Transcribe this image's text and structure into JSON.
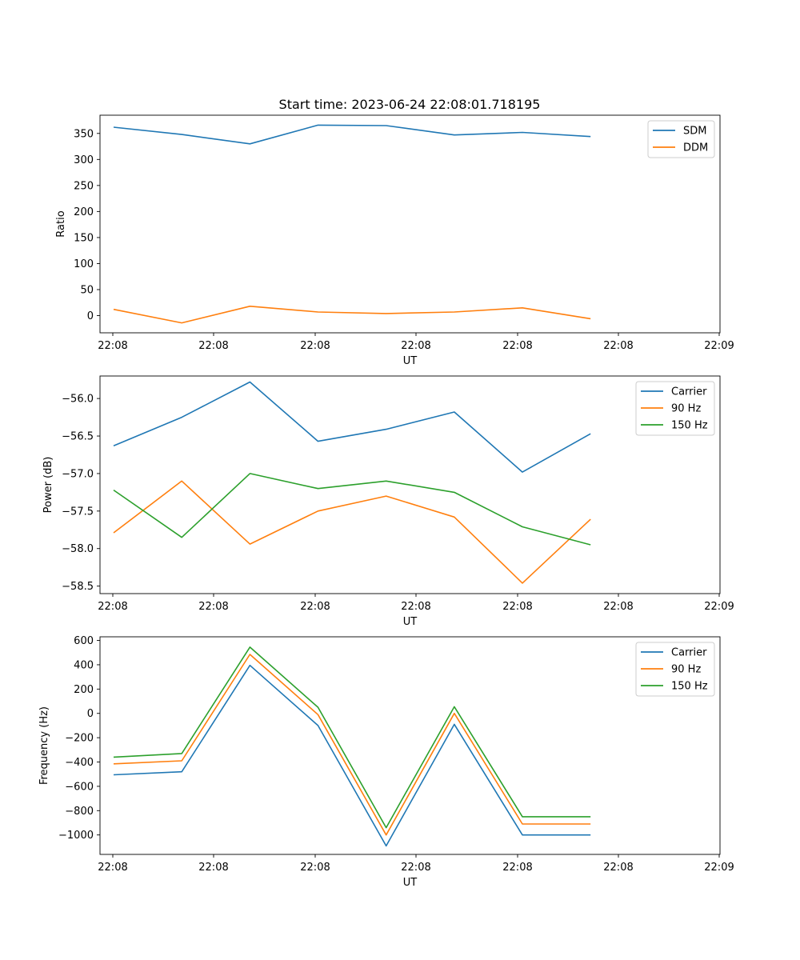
{
  "figure": {
    "title": "Start time: 2023-06-24 22:08:01.718195"
  },
  "chart_data": [
    {
      "type": "line",
      "xlabel": "UT",
      "ylabel": "Ratio",
      "x_tick_labels": [
        "22:08",
        "22:08",
        "22:08",
        "22:08",
        "22:08",
        "22:08",
        "22:09"
      ],
      "x": [
        1,
        2,
        3,
        4,
        5,
        6,
        7,
        8
      ],
      "xlim": [
        0.8,
        9.9
      ],
      "ylim": [
        -33,
        385
      ],
      "yticks": [
        0,
        50,
        100,
        150,
        200,
        250,
        300,
        350
      ],
      "ytick_labels": [
        "0",
        "50",
        "100",
        "150",
        "200",
        "250",
        "300",
        "350"
      ],
      "legend_position": "top-right",
      "series": [
        {
          "name": "SDM",
          "color": "#1f77b4",
          "values": [
            362,
            348,
            330,
            366,
            365,
            347,
            352,
            344
          ]
        },
        {
          "name": "DDM",
          "color": "#ff7f0e",
          "values": [
            12,
            -14,
            18,
            7,
            4,
            7,
            15,
            -6
          ]
        }
      ]
    },
    {
      "type": "line",
      "xlabel": "UT",
      "ylabel": "Power (dB)",
      "x_tick_labels": [
        "22:08",
        "22:08",
        "22:08",
        "22:08",
        "22:08",
        "22:08",
        "22:09"
      ],
      "x": [
        1,
        2,
        3,
        4,
        5,
        6,
        7,
        8
      ],
      "xlim": [
        0.8,
        9.9
      ],
      "ylim": [
        -58.6,
        -55.7
      ],
      "yticks": [
        -56.0,
        -56.5,
        -57.0,
        -57.5,
        -58.0,
        -58.5
      ],
      "ytick_labels": [
        "−56.0",
        "−56.5",
        "−57.0",
        "−57.5",
        "−58.0",
        "−58.5"
      ],
      "legend_position": "top-right",
      "series": [
        {
          "name": "Carrier",
          "color": "#1f77b4",
          "values": [
            -56.63,
            -56.25,
            -55.78,
            -56.57,
            -56.41,
            -56.18,
            -56.98,
            -56.47
          ]
        },
        {
          "name": "90 Hz",
          "color": "#ff7f0e",
          "values": [
            -57.79,
            -57.1,
            -57.94,
            -57.5,
            -57.3,
            -57.58,
            -58.46,
            -57.61
          ]
        },
        {
          "name": "150 Hz",
          "color": "#2ca02c",
          "values": [
            -57.22,
            -57.85,
            -57.0,
            -57.2,
            -57.1,
            -57.25,
            -57.71,
            -57.95
          ]
        }
      ]
    },
    {
      "type": "line",
      "xlabel": "UT",
      "ylabel": "Frequency (Hz)",
      "x_tick_labels": [
        "22:08",
        "22:08",
        "22:08",
        "22:08",
        "22:08",
        "22:08",
        "22:09"
      ],
      "x": [
        1,
        2,
        3,
        4,
        5,
        6,
        7,
        8
      ],
      "xlim": [
        0.8,
        9.9
      ],
      "ylim": [
        -1160,
        630
      ],
      "yticks": [
        600,
        400,
        200,
        0,
        -200,
        -400,
        -600,
        -800,
        -1000
      ],
      "ytick_labels": [
        "600",
        "400",
        "200",
        "0",
        "−200",
        "−400",
        "−600",
        "−800",
        "−1000"
      ],
      "legend_position": "top-right",
      "series": [
        {
          "name": "Carrier",
          "color": "#1f77b4",
          "values": [
            -505,
            -480,
            395,
            -100,
            -1090,
            -90,
            -1000,
            -1000
          ]
        },
        {
          "name": "90 Hz",
          "color": "#ff7f0e",
          "values": [
            -415,
            -390,
            485,
            -10,
            -1000,
            0,
            -910,
            -910
          ]
        },
        {
          "name": "150 Hz",
          "color": "#2ca02c",
          "values": [
            -360,
            -330,
            545,
            50,
            -940,
            55,
            -850,
            -850
          ]
        }
      ]
    }
  ]
}
